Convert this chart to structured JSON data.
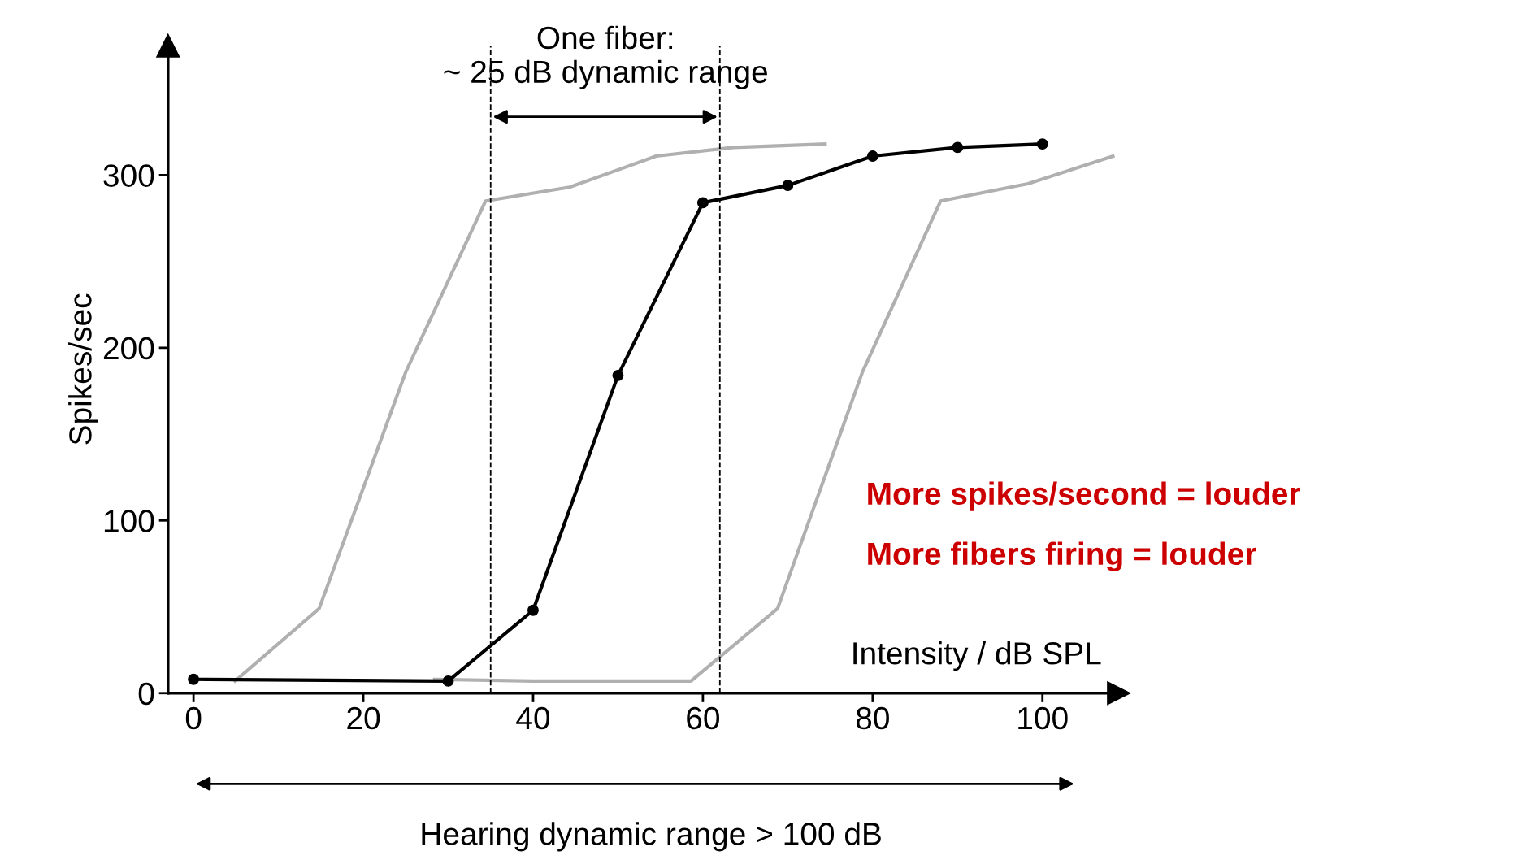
{
  "chart_data": {
    "type": "line",
    "xlabel": "Intensity / dB SPL",
    "ylabel": "Spikes/sec",
    "series": [
      {
        "color": "#b0b0b0",
        "marker": "none",
        "x": [
          4.9,
          14.8,
          25,
          34.4,
          44.3,
          54.5,
          63.6,
          74.4
        ],
        "values": [
          7,
          49,
          186,
          285,
          293,
          311,
          316,
          318
        ]
      },
      {
        "color": "#b0b0b0",
        "marker": "none",
        "x": [
          28.4,
          40,
          58.6,
          68.8,
          78.8,
          88,
          98.3,
          108.3
        ],
        "values": [
          8,
          7,
          7,
          49,
          186,
          285,
          295,
          311
        ]
      },
      {
        "color": "#000000",
        "marker": "circle",
        "x": [
          0,
          30,
          40,
          50,
          60,
          70,
          80,
          90,
          100
        ],
        "values": [
          8,
          7,
          48,
          184,
          284,
          294,
          311,
          316,
          318
        ]
      }
    ],
    "xlim": [
      -3,
      109
    ],
    "ylim": [
      0,
      375
    ],
    "xticks": [
      0,
      20,
      40,
      60,
      80,
      100
    ],
    "yticks": [
      0,
      100,
      200,
      300
    ],
    "grid": false,
    "legend": false,
    "ref_lines": [
      {
        "axis": "x",
        "value": 35,
        "color": "#000000",
        "line_style": "dashed"
      },
      {
        "axis": "x",
        "value": 62,
        "color": "#000000",
        "line_style": "dashed"
      }
    ],
    "annotations": [
      "One fiber:\n~ 25 dB dynamic range",
      "Hearing dynamic range > 100 dB",
      "More spikes/second = louder",
      "More fibers firing = louder"
    ]
  }
}
